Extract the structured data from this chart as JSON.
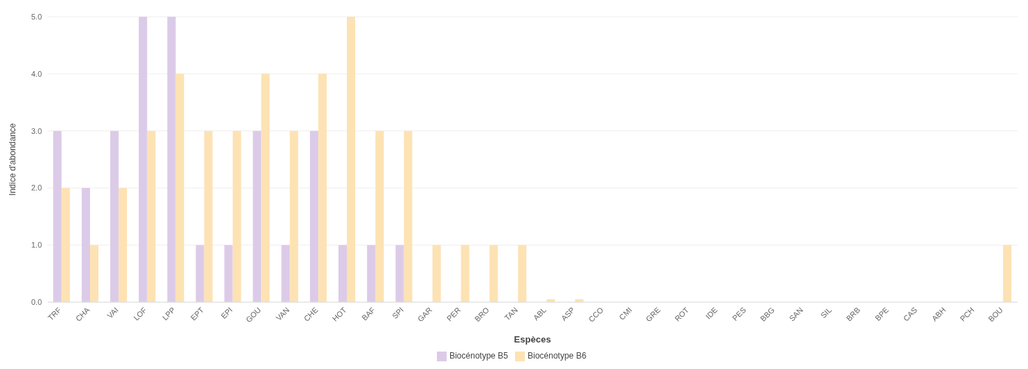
{
  "chart_data": {
    "type": "bar",
    "xlabel": "Espèces",
    "ylabel": "Indice d'abondance",
    "categories": [
      "TRF",
      "CHA",
      "VAI",
      "LOF",
      "LPP",
      "EPT",
      "EPI",
      "GOU",
      "VAN",
      "CHE",
      "HOT",
      "BAF",
      "SPI",
      "GAR",
      "PER",
      "BRO",
      "TAN",
      "ABL",
      "ASP",
      "CCO",
      "CMI",
      "GRE",
      "ROT",
      "IDE",
      "PES",
      "BBG",
      "SAN",
      "SIL",
      "BRB",
      "BPE",
      "CAS",
      "ABH",
      "PCH",
      "BOU"
    ],
    "series": [
      {
        "name": "Biocénotype B5",
        "color": "#dccbe8",
        "values": [
          3,
          2,
          3,
          5,
          5,
          1,
          1,
          3,
          1,
          3,
          1,
          1,
          1,
          0,
          0,
          0,
          0,
          0,
          0,
          0,
          0,
          0,
          0,
          0,
          0,
          0,
          0,
          0,
          0,
          0,
          0,
          0,
          0,
          0
        ]
      },
      {
        "name": "Biocénotype B6",
        "color": "#fde2b4",
        "values": [
          2,
          1,
          2,
          3,
          4,
          3,
          3,
          4,
          3,
          4,
          5,
          3,
          3,
          1,
          1,
          1,
          1,
          0.05,
          0.05,
          0,
          0,
          0,
          0,
          0,
          0,
          0,
          0,
          0,
          0,
          0,
          0,
          0,
          0,
          1
        ]
      }
    ],
    "ylim": [
      0,
      5
    ],
    "yticks": [
      {
        "value": 0,
        "label": "0.0"
      },
      {
        "value": 1,
        "label": "1.0"
      },
      {
        "value": 2,
        "label": "2.0"
      },
      {
        "value": 3,
        "label": "3.0"
      },
      {
        "value": 4,
        "label": "4.0"
      },
      {
        "value": 5,
        "label": "5.0"
      }
    ],
    "grid": "y",
    "legend": "bottom"
  }
}
